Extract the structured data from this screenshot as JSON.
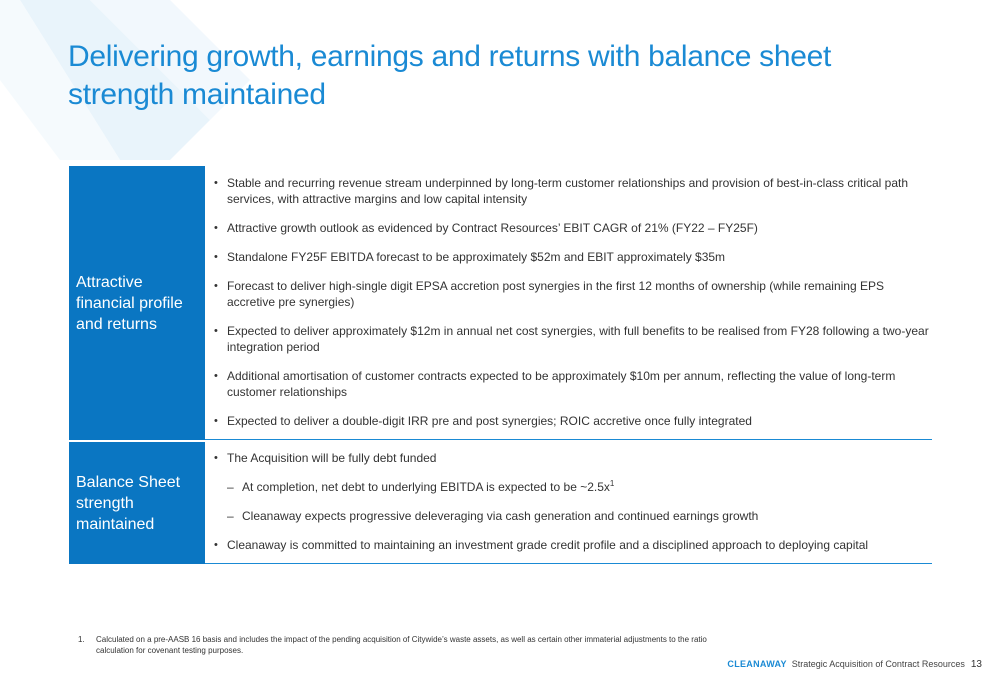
{
  "title": {
    "line1": "Delivering growth, earnings and returns with balance sheet",
    "line2": "strength maintained"
  },
  "sections": [
    {
      "label": "Attractive financial profile and returns",
      "items": [
        "Stable and recurring revenue stream underpinned by long-term customer relationships and provision of best-in-class critical path services, with attractive margins and low capital intensity",
        "Attractive growth outlook as evidenced by Contract Resources’ EBIT CAGR of 21% (FY22 – FY25F)",
        "Standalone FY25F EBITDA forecast to be approximately $52m and EBIT approximately $35m",
        "Forecast to deliver high-single digit EPSA accretion post synergies in the first 12 months of ownership (while remaining EPS accretive pre synergies)",
        "Expected to deliver approximately $12m in annual net cost synergies, with full benefits to be realised from FY28 following a two-year integration period",
        "Additional amortisation of customer contracts expected to be approximately $10m per annum, reflecting the value of long-term customer relationships",
        "Expected to deliver a double-digit IRR pre and post synergies; ROIC accretive once fully integrated"
      ]
    },
    {
      "label": "Balance Sheet strength maintained",
      "items": [
        "The Acquisition will be fully debt funded",
        "At completion, net debt to underlying EBITDA is expected to be ~2.5x",
        "Cleanaway expects progressive deleveraging via cash generation and continued earnings growth",
        "Cleanaway is committed to maintaining an investment grade credit profile and a disciplined approach to deploying capital"
      ],
      "footnote_ref": "1"
    }
  ],
  "footnote": {
    "number": "1.",
    "text": "Calculated on a pre-AASB 16 basis and includes the impact of the pending acquisition of Citywide’s waste assets, as well as certain other immaterial adjustments to the ratio calculation for covenant testing purposes."
  },
  "footer": {
    "brand": "CLEANAWAY",
    "text": "Strategic Acquisition of Contract Resources",
    "page": "13"
  },
  "colors": {
    "accent": "#1a8ad4",
    "label_bg": "#0a76c2",
    "decor_light": "#e4f2fb"
  }
}
